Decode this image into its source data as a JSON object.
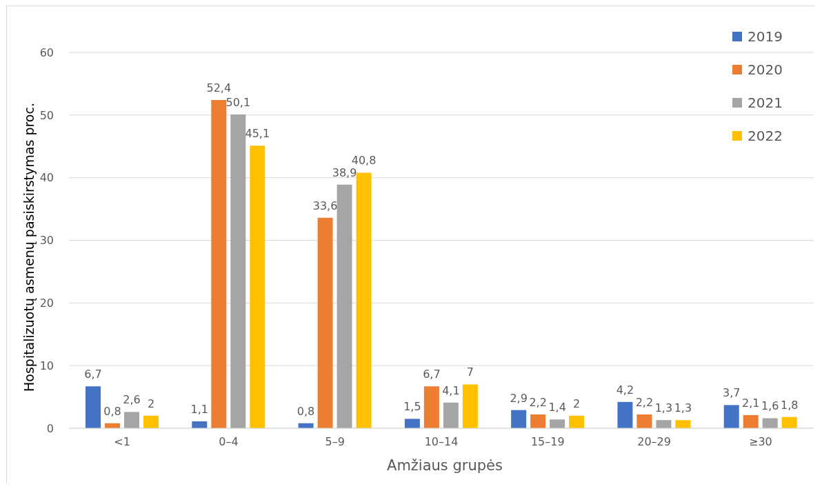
{
  "chart_data": {
    "type": "bar",
    "xlabel": "Amžiaus grupės",
    "ylabel": "Hospitalizuotų asmenų pasiskirstymas proc.",
    "categories": [
      "<1",
      "0–4",
      "5–9",
      "10–14",
      "15–19",
      "20–29",
      "≥30"
    ],
    "series": [
      {
        "name": "2019",
        "color": "#4472c4",
        "values": [
          6.7,
          1.1,
          0.8,
          1.5,
          2.9,
          4.2,
          3.7
        ],
        "value_labels": [
          "6,7",
          "1,1",
          "0,8",
          "1,5",
          "2,9",
          "4,2",
          "3,7"
        ]
      },
      {
        "name": "2020",
        "color": "#ed7d31",
        "values": [
          0.8,
          52.4,
          33.6,
          6.7,
          2.2,
          2.2,
          2.1
        ],
        "value_labels": [
          "0,8",
          "52,4",
          "33,6",
          "6,7",
          "2,2",
          "2,2",
          "2,1"
        ]
      },
      {
        "name": "2021",
        "color": "#a5a5a5",
        "values": [
          2.6,
          50.1,
          38.9,
          4.1,
          1.4,
          1.3,
          1.6
        ],
        "value_labels": [
          "2,6",
          "50,1",
          "38,9",
          "4,1",
          "1,4",
          "1,3",
          "1,6"
        ]
      },
      {
        "name": "2022",
        "color": "#ffc000",
        "values": [
          2,
          45.1,
          40.8,
          7,
          2,
          1.3,
          1.8
        ],
        "value_labels": [
          "2",
          "45,1",
          "40,8",
          "7",
          "2",
          "1,3",
          "1,8"
        ]
      }
    ],
    "ylim": [
      0,
      60
    ],
    "yticks": [
      0,
      10,
      20,
      30,
      40,
      50,
      60
    ],
    "grid": "y",
    "legend": "top right"
  }
}
